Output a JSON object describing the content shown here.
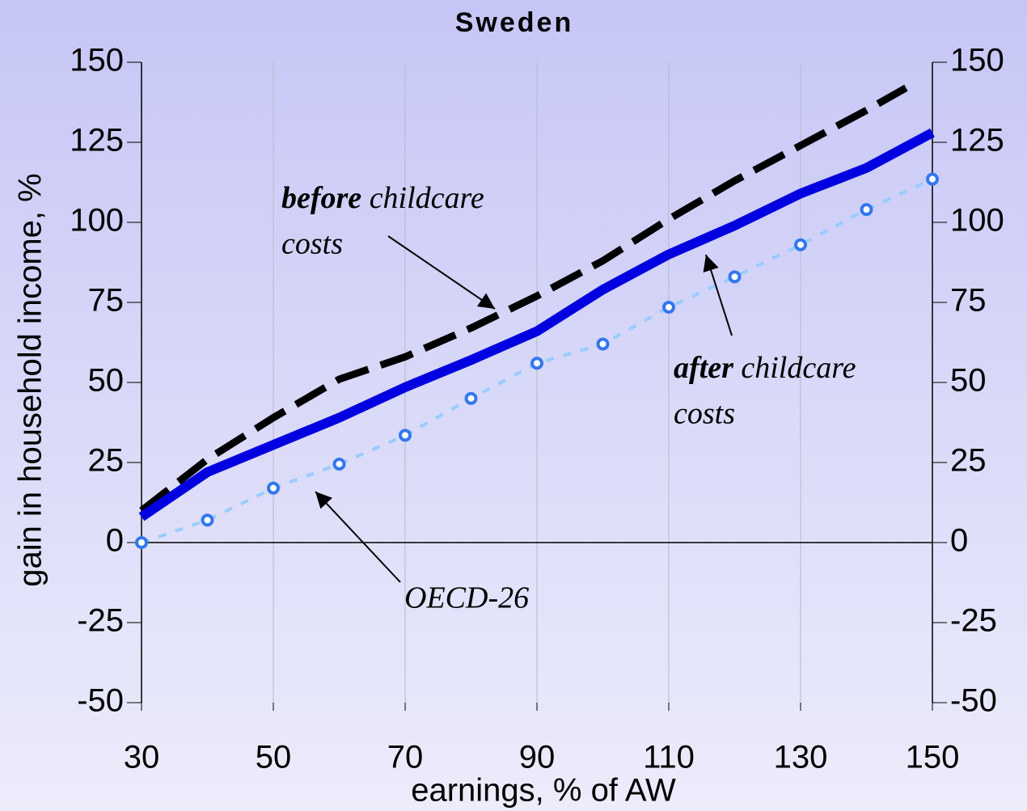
{
  "chart_data": {
    "type": "line",
    "title": "Sweden",
    "x_label": "earnings, % of AW",
    "y_label": "gain in household income, %",
    "xlim": [
      30,
      150
    ],
    "xticks": [
      30,
      50,
      70,
      90,
      110,
      130,
      150
    ],
    "ylim": [
      -50,
      150
    ],
    "yticks": [
      -50,
      -25,
      0,
      25,
      50,
      75,
      100,
      125,
      150
    ],
    "grid": true,
    "series": [
      {
        "color": "#000000",
        "style": "dashed",
        "x": [
          30,
          40,
          50,
          60,
          70,
          80,
          90,
          100,
          110,
          120,
          130,
          140,
          146
        ],
        "values": [
          10,
          26,
          39,
          51,
          58,
          67,
          77,
          88,
          101,
          113,
          124,
          135,
          142
        ]
      },
      {
        "color": "#0000e0",
        "style": "solid",
        "x": [
          30,
          40,
          50,
          60,
          70,
          80,
          90,
          100,
          110,
          120,
          130,
          140,
          150
        ],
        "values": [
          8,
          22,
          30.5,
          39,
          48.5,
          57,
          66,
          79,
          90,
          99,
          109,
          117,
          128
        ]
      },
      {
        "color": "#99ccff",
        "style": "dotted",
        "marker": "circle",
        "marker_color": "#3377ee",
        "x": [
          30,
          40,
          50,
          60,
          70,
          80,
          90,
          100,
          110,
          120,
          130,
          140,
          150
        ],
        "values": [
          0,
          7,
          17,
          24.5,
          33.5,
          45,
          56,
          62,
          73.5,
          83,
          93,
          104,
          113.5
        ]
      }
    ],
    "annotations": [
      {
        "bold": "before",
        "text": " childcare",
        "line2": "costs"
      },
      {
        "bold": "after",
        "text": " childcare",
        "line2": "costs"
      },
      {
        "text": "OECD-26"
      }
    ]
  }
}
